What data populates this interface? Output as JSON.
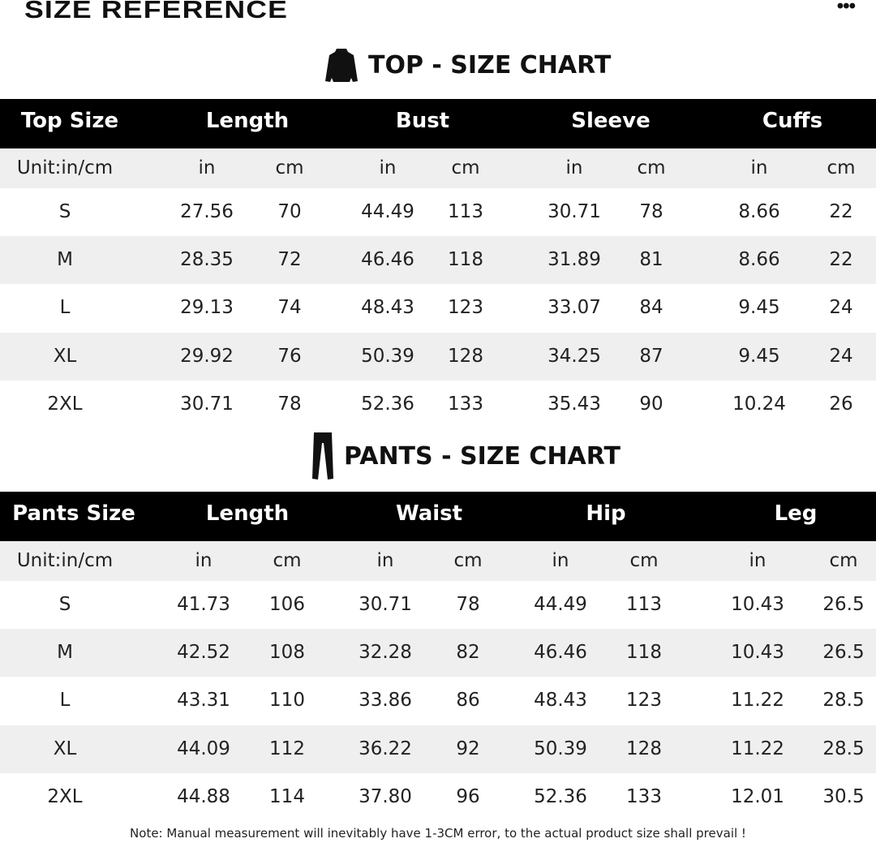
{
  "header": {
    "title": "SIZE REFERENCE",
    "more_label": "•••"
  },
  "top": {
    "title": "TOP - SIZE CHART",
    "icon": "jacket-icon",
    "headers": [
      "Top Size",
      "Length",
      "Bust",
      "Sleeve",
      "Cuffs"
    ],
    "units": [
      "Unit:in/cm",
      "in",
      "cm",
      "in",
      "cm",
      "in",
      "cm",
      "in",
      "cm"
    ],
    "rows": [
      [
        "S",
        "27.56",
        "70",
        "44.49",
        "113",
        "30.71",
        "78",
        "8.66",
        "22"
      ],
      [
        "M",
        "28.35",
        "72",
        "46.46",
        "118",
        "31.89",
        "81",
        "8.66",
        "22"
      ],
      [
        "L",
        "29.13",
        "74",
        "48.43",
        "123",
        "33.07",
        "84",
        "9.45",
        "24"
      ],
      [
        "XL",
        "29.92",
        "76",
        "50.39",
        "128",
        "34.25",
        "87",
        "9.45",
        "24"
      ],
      [
        "2XL",
        "30.71",
        "78",
        "52.36",
        "133",
        "35.43",
        "90",
        "10.24",
        "26"
      ]
    ]
  },
  "pants": {
    "title": "PANTS - SIZE CHART",
    "icon": "pants-icon",
    "headers": [
      "Pants Size",
      "Length",
      "Waist",
      "Hip",
      "Leg"
    ],
    "units": [
      "Unit:in/cm",
      "in",
      "cm",
      "in",
      "cm",
      "in",
      "cm",
      "in",
      "cm"
    ],
    "rows": [
      [
        "S",
        "41.73",
        "106",
        "30.71",
        "78",
        "44.49",
        "113",
        "10.43",
        "26.5"
      ],
      [
        "M",
        "42.52",
        "108",
        "32.28",
        "82",
        "46.46",
        "118",
        "10.43",
        "26.5"
      ],
      [
        "L",
        "43.31",
        "110",
        "33.86",
        "86",
        "48.43",
        "123",
        "11.22",
        "28.5"
      ],
      [
        "XL",
        "44.09",
        "112",
        "36.22",
        "92",
        "50.39",
        "128",
        "11.22",
        "28.5"
      ],
      [
        "2XL",
        "44.88",
        "114",
        "37.80",
        "96",
        "52.36",
        "133",
        "12.01",
        "30.5"
      ]
    ]
  },
  "note": "Note: Manual measurement will inevitably have 1-3CM error, to the actual product size shall prevail !"
}
